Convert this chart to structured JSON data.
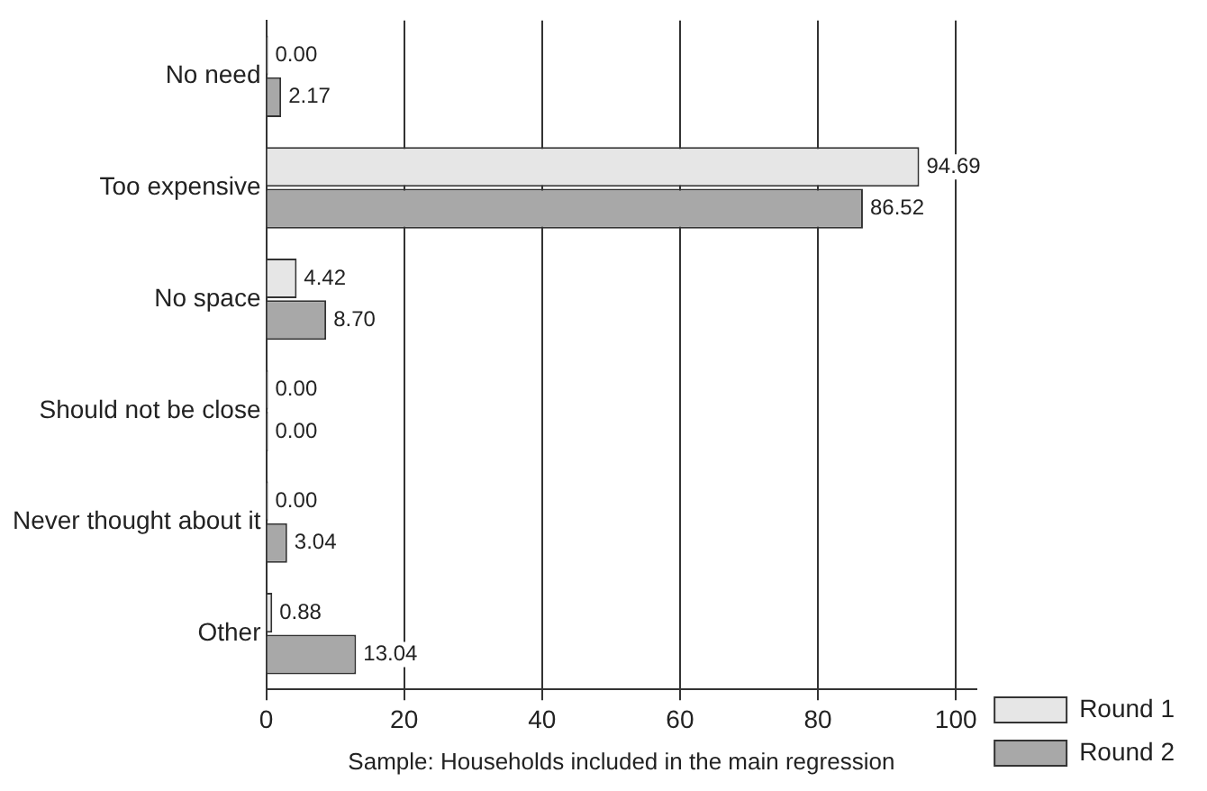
{
  "chart_data": {
    "type": "bar",
    "orientation": "horizontal",
    "xlabel": "Sample: Households included in the main regression",
    "categories": [
      "No need",
      "Too expensive",
      "No space",
      "Should not be close",
      "Never thought about it",
      "Other"
    ],
    "series": [
      {
        "name": "Round 1",
        "color": "#e6e6e6",
        "values": [
          0,
          94.69,
          4.42,
          0,
          0,
          0.88
        ],
        "value_labels": [
          "0.00",
          "94.69",
          "4.42",
          "0.00",
          "0.00",
          "0.88"
        ]
      },
      {
        "name": "Round 2",
        "color": "#a8a8a8",
        "values": [
          2.17,
          86.52,
          8.7,
          0,
          3.04,
          13.04
        ],
        "value_labels": [
          "2.17",
          "86.52",
          "8.70",
          "0.00",
          "3.04",
          "13.04"
        ]
      }
    ],
    "xlim": [
      0,
      103
    ],
    "xticks": [
      0,
      20,
      40,
      60,
      80,
      100
    ],
    "grid": "x",
    "legend": "bottom right"
  }
}
